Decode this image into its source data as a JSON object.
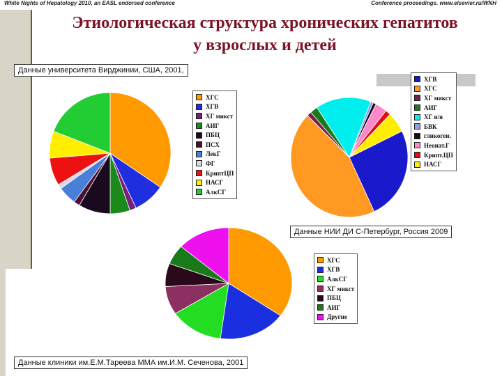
{
  "header": {
    "left": "White Nights of Hepatology 2010, an EASL endorsed conference",
    "right": "Conference proceedings. www.elsevier.ru/WNH"
  },
  "title": {
    "line1": "Этиологическая структура хронических гепатитов",
    "line2": "у взрослых и детей"
  },
  "captions": {
    "c1": "Данные университета Вирджинии, США, 2001,",
    "c2": "Данные НИИ ДИ С-Петербург, Россия 2009",
    "c3": "Данные клиники им.Е.М.Тареева ММА им.И.М. Сеченова, 2001"
  },
  "chart_data": [
    {
      "type": "pie",
      "categories": [
        "ХГС",
        "ХГВ",
        "ХГ микст",
        "АИГ",
        "ПБЦ",
        "ПСХ",
        "ЛекГ",
        "ФГ",
        "КриптЦП",
        "НАСГ",
        "АлкСГ"
      ],
      "values": [
        34.5,
        8.5,
        1.7,
        5.3,
        8.5,
        1.6,
        5.0,
        1.2,
        7.4,
        7.2,
        19.1
      ],
      "colors": [
        "#ff9900",
        "#1f2fe0",
        "#7b1d7b",
        "#1a8a1a",
        "#1a0a20",
        "#4a1030",
        "#4a7fd8",
        "#d8d8e8",
        "#ee1111",
        "#ffee00",
        "#22cc33"
      ]
    },
    {
      "type": "pie",
      "categories": [
        "ХГВ",
        "ХГС",
        "ХГ микст",
        "АИГ",
        "ХГ н/я",
        "БВК",
        "гликоген.",
        "Неонат.Г",
        "Крипт.ЦП",
        "НАСГ"
      ],
      "values": [
        24.2,
        42.5,
        1.2,
        2.0,
        14.7,
        0.7,
        0.8,
        3.1,
        1.4,
        5.3
      ],
      "colors": [
        "#1a1acc",
        "#ff9922",
        "#7b1d4b",
        "#1a7a1a",
        "#00eeee",
        "#9999ee",
        "#111111",
        "#ff88cc",
        "#dd1111",
        "#ffee00"
      ],
      "legend": [
        "ХГВ",
        "ХГС",
        "ХГ микст",
        "АИГ",
        "ХГ н/я",
        "БВК",
        "гликоген.",
        "Неонат.Г",
        "Крипт.ЦП",
        "НАСГ"
      ]
    },
    {
      "type": "pie",
      "categories": [
        "ХГС",
        "ХГВ",
        "АлкСГ",
        "ХГ микст",
        "ПБЦ",
        "АИГ",
        "Другие"
      ],
      "values": [
        34.8,
        17.3,
        13.8,
        8.2,
        6.7,
        5.7,
        13.5
      ],
      "colors": [
        "#ff9900",
        "#1a2fe0",
        "#22dd22",
        "#8b3060",
        "#2a0a1a",
        "#1a7a1a",
        "#ee11ee"
      ]
    }
  ],
  "legends": {
    "l1": [
      "ХГС",
      "ХГВ",
      "ХГ микст",
      "АИГ",
      "ПБЦ",
      "ПСХ",
      "ЛекГ",
      "ФГ",
      "КриптЦП",
      "НАСГ",
      "АлкСГ"
    ],
    "l2": [
      "ХГВ",
      "ХГС",
      "ХГ микст",
      "АИГ",
      "ХГ н/я",
      "БВК",
      "гликоген.",
      "Неонат.Г",
      "Крипт.ЦП",
      "НАСГ"
    ],
    "l3": [
      "ХГС",
      "ХГВ",
      "АлкСГ",
      "ХГ микст",
      "ПБЦ",
      "АИГ",
      "Другие"
    ]
  },
  "legend_colors": {
    "l1": [
      "#ff9900",
      "#1f2fe0",
      "#7b1d7b",
      "#1a8a1a",
      "#1a0a20",
      "#4a1030",
      "#4a7fd8",
      "#d8d8e8",
      "#ee1111",
      "#ffee00",
      "#22cc33"
    ],
    "l2": [
      "#1a1acc",
      "#ff9922",
      "#7b1d4b",
      "#1a7a1a",
      "#00eeee",
      "#9999ee",
      "#111111",
      "#ff88cc",
      "#dd1111",
      "#ffee00"
    ],
    "l3": [
      "#ff9900",
      "#1a2fe0",
      "#22dd22",
      "#8b3060",
      "#2a0a1a",
      "#1a7a1a",
      "#ee11ee"
    ]
  }
}
